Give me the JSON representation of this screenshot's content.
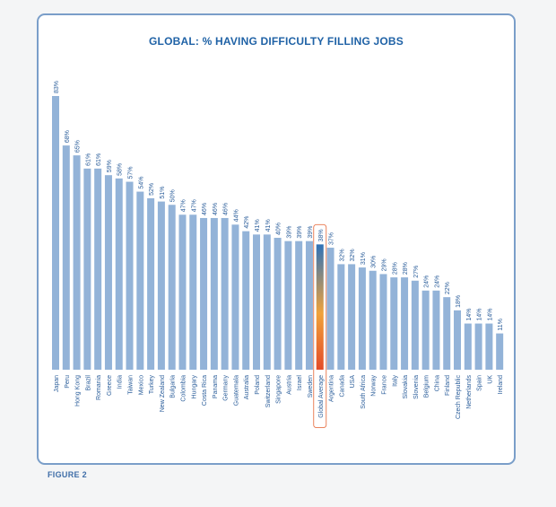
{
  "figure_label": "FIGURE 2",
  "colors": {
    "bar": "#93b3d8",
    "title": "#1f62a6",
    "label": "#2a5d9a",
    "highlight_top": "#2f72b8",
    "highlight_mid": "#f0a23a",
    "highlight_bottom": "#e34b28",
    "highlight_outline": "#e8744a",
    "figure_label": "#3f6ea8"
  },
  "chart_data": {
    "type": "bar",
    "title": "GLOBAL: % HAVING DIFFICULTY FILLING JOBS",
    "xlabel": "",
    "ylabel": "",
    "ylim": [
      0,
      83
    ],
    "value_suffix": "%",
    "highlight_category": "Global Average",
    "categories": [
      "Japan",
      "Peru",
      "Hong Kong",
      "Brazil",
      "Romania",
      "Greece",
      "India",
      "Taiwan",
      "Mexico",
      "Turkey",
      "New Zealand",
      "Bulgaria",
      "Colombia",
      "Hungary",
      "Costa Rica",
      "Panama",
      "Germany",
      "Guatemala",
      "Australia",
      "Poland",
      "Switzerland",
      "Singapore",
      "Austria",
      "Israel",
      "Sweden",
      "Global Average",
      "Argentina",
      "Canada",
      "USA",
      "South Africa",
      "Norway",
      "France",
      "Italy",
      "Slovakia",
      "Slovenia",
      "Belgium",
      "China",
      "Finland",
      "Czech Republic",
      "Netherlands",
      "Spain",
      "UK",
      "Ireland"
    ],
    "values": [
      83,
      68,
      65,
      61,
      61,
      59,
      58,
      57,
      54,
      52,
      51,
      50,
      47,
      47,
      46,
      46,
      46,
      44,
      42,
      41,
      41,
      40,
      39,
      39,
      39,
      38,
      37,
      32,
      32,
      31,
      30,
      29,
      28,
      28,
      27,
      24,
      24,
      22,
      18,
      14,
      14,
      14,
      11
    ]
  }
}
